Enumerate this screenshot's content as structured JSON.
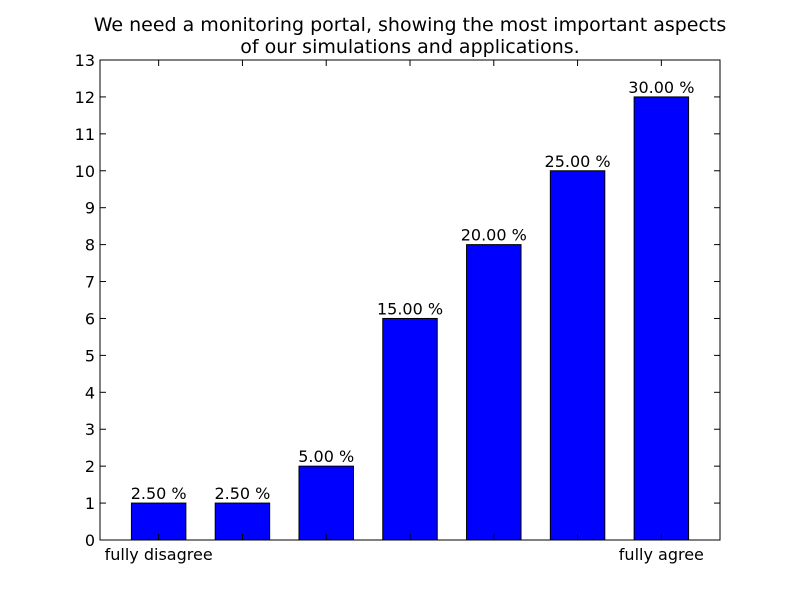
{
  "chart_data": {
    "type": "bar",
    "title_lines": [
      "We need a monitoring portal, showing the most important aspects",
      "of our simulations and applications."
    ],
    "categories": [
      "fully disagree",
      "",
      "",
      "",
      "",
      "",
      "fully agree"
    ],
    "values": [
      1,
      1,
      2,
      6,
      8,
      10,
      12
    ],
    "data_labels": [
      "2.50 %",
      "2.50 %",
      "5.00 %",
      "15.00 %",
      "20.00 %",
      "25.00 %",
      "30.00 %"
    ],
    "xlabel": "",
    "ylabel": "",
    "ylim": [
      0,
      13
    ],
    "yticks": [
      0,
      1,
      2,
      3,
      4,
      5,
      6,
      7,
      8,
      9,
      10,
      11,
      12,
      13
    ],
    "grid": false,
    "bar_color": "#0000ff",
    "edge_color": "#000000"
  }
}
